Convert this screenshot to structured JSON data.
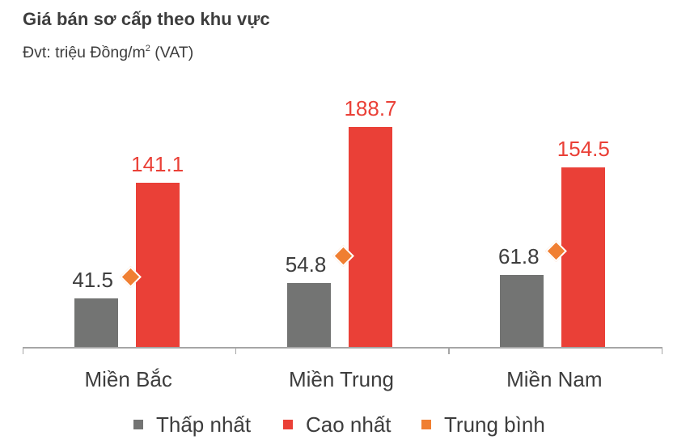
{
  "header": {
    "title": "Giá bán sơ cấp theo khu vực",
    "subtitle_prefix": "Đvt: triệu Đồng/m",
    "subtitle_sup": "2",
    "subtitle_suffix": " (VAT)"
  },
  "colors": {
    "min": "#737473",
    "max": "#ea4037",
    "avg": "#f07f32",
    "text": "#3d3d3d",
    "axis": "#a6a6a6"
  },
  "legend": [
    {
      "label": "Thấp nhất",
      "color": "#737473"
    },
    {
      "label": "Cao nhất",
      "color": "#ea4037"
    },
    {
      "label": "Trung bình",
      "color": "#f07f32"
    }
  ],
  "labels": {
    "min": [
      "41.5",
      "54.8",
      "61.8"
    ],
    "max": [
      "141.1",
      "188.7",
      "154.5"
    ]
  },
  "chart_data": {
    "type": "bar",
    "title": "Giá bán sơ cấp theo khu vực",
    "subtitle": "Đvt: triệu Đồng/m2 (VAT)",
    "xlabel": "",
    "ylabel": "triệu Đồng/m2",
    "categories": [
      "Miền Bắc",
      "Miền Trung",
      "Miền Nam"
    ],
    "series": [
      {
        "name": "Thấp nhất",
        "type": "bar",
        "color": "#737473",
        "values": [
          41.5,
          54.8,
          61.8
        ]
      },
      {
        "name": "Cao nhất",
        "type": "bar",
        "color": "#ea4037",
        "values": [
          141.1,
          188.7,
          154.5
        ]
      },
      {
        "name": "Trung bình",
        "type": "scatter",
        "marker": "diamond",
        "color": "#f07f32",
        "values": [
          60,
          78,
          82
        ]
      }
    ],
    "ylim": [
      0,
      200
    ],
    "grid": false,
    "y_axis_visible": false,
    "legend_position": "bottom",
    "data_labels": {
      "Thấp nhất": true,
      "Cao nhất": true,
      "Trung bình": false
    }
  }
}
